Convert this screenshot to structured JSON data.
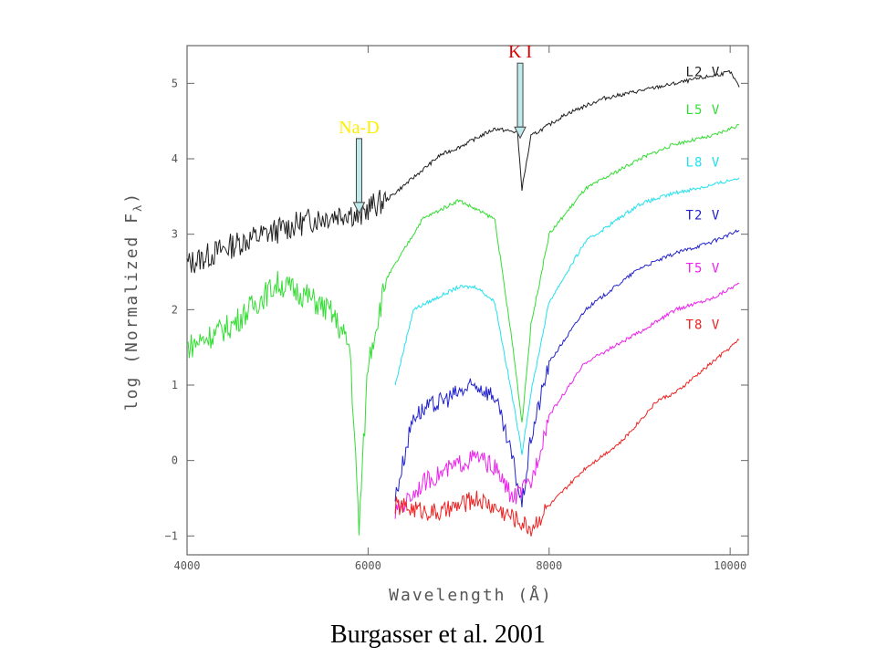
{
  "chart_data": {
    "type": "line",
    "xlabel": "Wavelength (Å)",
    "ylabel": "log (Normalized F",
    "ylabel_sub": "λ",
    "ylabel_close": ")",
    "xlim": [
      4000,
      10200
    ],
    "ylim": [
      -1.25,
      5.5
    ],
    "x_ticks": [
      4000,
      6000,
      8000,
      10000
    ],
    "y_ticks": [
      -1,
      0,
      1,
      2,
      3,
      4,
      5
    ],
    "series": [
      {
        "name": "L2 V",
        "color": "#202020",
        "x": [
          4000,
          4600,
          5000,
          5400,
          5800,
          5900,
          6000,
          6200,
          6600,
          6800,
          7000,
          7400,
          7650,
          7700,
          7800,
          8200,
          8600,
          9000,
          9400,
          9800,
          10000,
          10100
        ],
        "y": [
          2.6,
          2.9,
          3.05,
          3.2,
          3.3,
          3.2,
          3.35,
          3.45,
          3.85,
          4.05,
          4.15,
          4.4,
          4.35,
          3.6,
          4.3,
          4.6,
          4.8,
          4.9,
          5.0,
          5.1,
          5.15,
          4.95
        ]
      },
      {
        "name": "L5 V",
        "color": "#33dd33",
        "x": [
          4000,
          4500,
          5000,
          5300,
          5600,
          5800,
          5900,
          6000,
          6200,
          6600,
          7000,
          7400,
          7600,
          7700,
          7800,
          8000,
          8400,
          9000,
          9400,
          9800,
          10100
        ],
        "y": [
          1.5,
          1.8,
          2.35,
          2.2,
          1.95,
          1.5,
          -0.9,
          1.3,
          2.4,
          3.2,
          3.45,
          3.2,
          1.5,
          0.5,
          1.8,
          3.0,
          3.6,
          4.0,
          4.2,
          4.3,
          4.45
        ]
      },
      {
        "name": "L8 V",
        "color": "#22e0ee",
        "x": [
          6300,
          6500,
          7000,
          7200,
          7400,
          7600,
          7700,
          7800,
          8000,
          8400,
          9000,
          9400,
          9800,
          10100
        ],
        "y": [
          1.0,
          2.0,
          2.3,
          2.3,
          2.1,
          0.8,
          0.1,
          0.9,
          2.1,
          2.9,
          3.4,
          3.55,
          3.65,
          3.75
        ]
      },
      {
        "name": "T2 V",
        "color": "#2222cc",
        "x": [
          6300,
          6500,
          7000,
          7200,
          7400,
          7600,
          7700,
          7800,
          8000,
          8400,
          9000,
          9400,
          9800,
          10100
        ],
        "y": [
          -0.5,
          0.6,
          0.9,
          1.0,
          0.85,
          0.0,
          -0.6,
          0.3,
          1.3,
          2.0,
          2.55,
          2.75,
          2.9,
          3.05
        ]
      },
      {
        "name": "T5 V",
        "color": "#ee22ee",
        "x": [
          6300,
          6600,
          7000,
          7200,
          7400,
          7600,
          7800,
          8000,
          8400,
          9000,
          9400,
          9800,
          10100
        ],
        "y": [
          -0.7,
          -0.3,
          -0.05,
          0.05,
          -0.1,
          -0.5,
          -0.3,
          0.6,
          1.3,
          1.7,
          2.0,
          2.15,
          2.35
        ]
      },
      {
        "name": "T8 V",
        "color": "#ee2222",
        "x": [
          6300,
          6800,
          7200,
          7600,
          7800,
          8000,
          8400,
          8800,
          9200,
          9400,
          9600,
          9800,
          10100
        ],
        "y": [
          -0.6,
          -0.7,
          -0.5,
          -0.75,
          -0.9,
          -0.6,
          -0.1,
          0.25,
          0.8,
          0.9,
          1.1,
          1.3,
          1.6
        ]
      }
    ],
    "annotations": [
      {
        "text": "Na-D",
        "color": "#ffee00",
        "x": 5900,
        "y": 3.3
      },
      {
        "text": "K I",
        "color": "#dd0000",
        "x": 7680,
        "y": 4.3
      }
    ],
    "grid": false
  },
  "caption": "Burgasser  et al. 2001"
}
